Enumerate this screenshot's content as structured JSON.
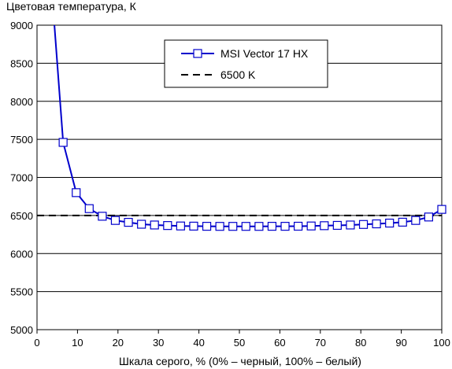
{
  "chart_data": {
    "type": "line",
    "title": "",
    "ylabel": "Цветовая температура, К",
    "xlabel": "Шкала серого, % (0% – черный, 100% – белый)",
    "xlim": [
      0,
      100
    ],
    "ylim": [
      5000,
      9000
    ],
    "xticks": [
      0,
      10,
      20,
      30,
      40,
      50,
      60,
      70,
      80,
      90,
      100
    ],
    "yticks": [
      5000,
      5500,
      6000,
      6500,
      7000,
      7500,
      8000,
      8500,
      9000
    ],
    "grid": "horizontal",
    "legend_position": "top-center",
    "series": [
      {
        "name": "MSI Vector 17 HX",
        "color": "#0000cc",
        "marker": "square",
        "x": [
          6.45,
          9.68,
          12.9,
          16.13,
          19.35,
          22.58,
          25.81,
          29.03,
          32.26,
          35.48,
          38.71,
          41.94,
          45.16,
          48.39,
          51.61,
          54.84,
          58.06,
          61.29,
          64.52,
          67.74,
          70.97,
          74.19,
          77.42,
          80.65,
          83.87,
          87.1,
          90.32,
          93.55,
          96.77,
          100
        ],
        "y": [
          7460,
          6800,
          6590,
          6490,
          6435,
          6410,
          6385,
          6375,
          6368,
          6362,
          6360,
          6358,
          6357,
          6357,
          6357,
          6357,
          6358,
          6358,
          6359,
          6362,
          6366,
          6370,
          6375,
          6382,
          6390,
          6400,
          6412,
          6435,
          6480,
          6580
        ],
        "offscale_start": {
          "x": 4.3,
          "y": 9000
        }
      },
      {
        "name": "6500 K",
        "color": "#000000",
        "dash": true,
        "x": [
          0,
          100
        ],
        "y": [
          6500,
          6500
        ]
      }
    ]
  }
}
